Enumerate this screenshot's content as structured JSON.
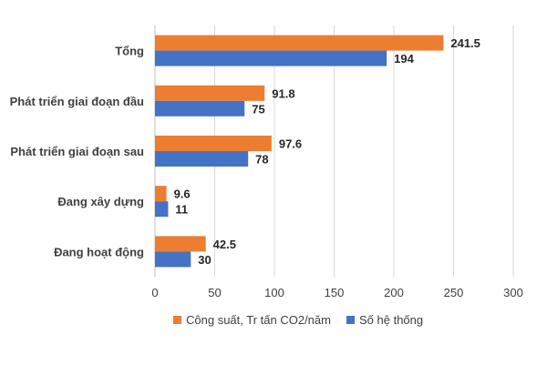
{
  "chart_data": {
    "type": "bar",
    "orientation": "horizontal",
    "categories": [
      "Tổng",
      "Phát triển giai đoạn đầu",
      "Phát triển giai đoạn sau",
      "Đang xây dựng",
      "Đang hoạt động"
    ],
    "series": [
      {
        "name": "Công suất, Tr tấn CO2/năm",
        "color": "#ED7D31",
        "values": [
          241.5,
          91.8,
          97.6,
          9.6,
          42.5
        ],
        "labels": [
          "241.5",
          "91.8",
          "97.6",
          "9.6",
          "42.5"
        ]
      },
      {
        "name": "Số hệ thống",
        "color": "#4472C4",
        "values": [
          194,
          75,
          78,
          11,
          30
        ],
        "labels": [
          "194",
          "75",
          "78",
          "11",
          "30"
        ]
      }
    ],
    "xlim": [
      0,
      300
    ],
    "xticks": [
      "0",
      "50",
      "100",
      "150",
      "200",
      "250",
      "300"
    ],
    "grid": "vertical",
    "legend_position": "bottom",
    "gridline_color": "#d9d9d9",
    "axis_color": "#bfbfbf"
  }
}
